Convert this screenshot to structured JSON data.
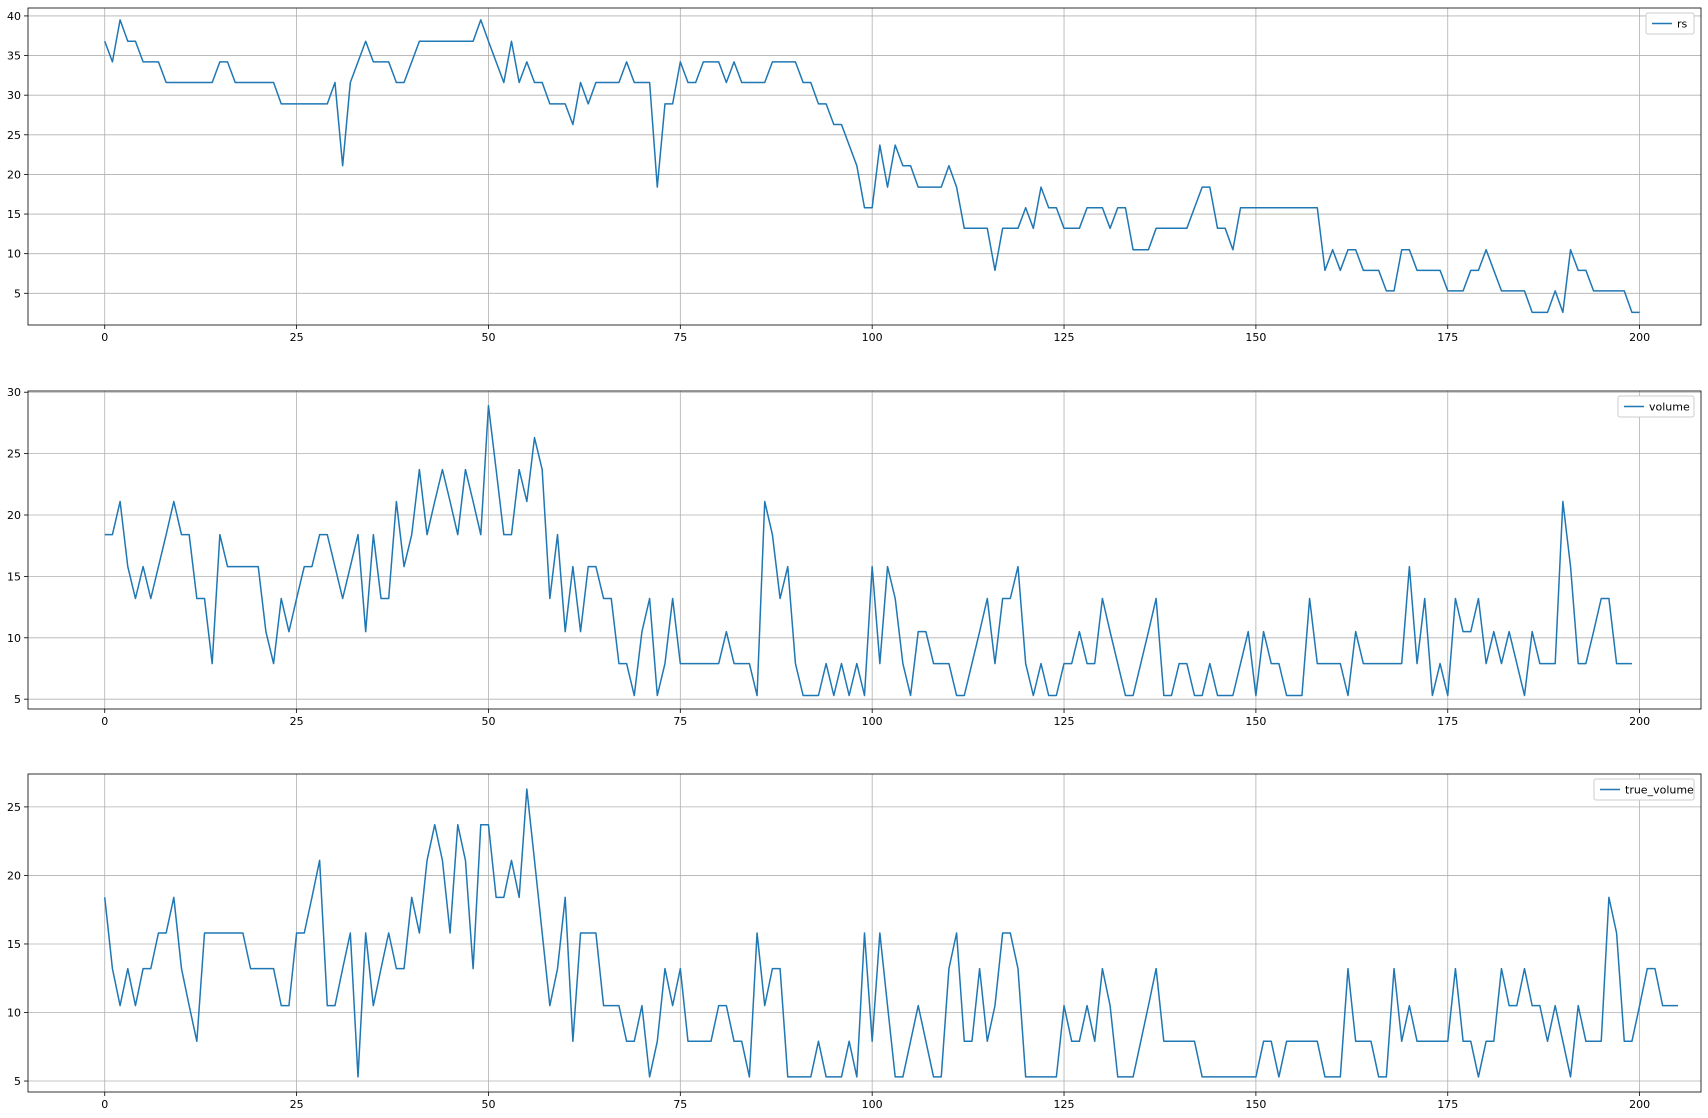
{
  "chart_data": [
    {
      "type": "line",
      "series": [
        {
          "name": "rs",
          "color": "#1f77b4",
          "values": [
            36.8,
            34.2,
            39.5,
            36.8,
            36.8,
            34.2,
            34.2,
            34.2,
            31.6,
            31.6,
            31.6,
            31.6,
            31.6,
            31.6,
            31.6,
            34.2,
            34.2,
            31.6,
            31.6,
            31.6,
            31.6,
            31.6,
            31.6,
            28.9,
            28.9,
            28.9,
            28.9,
            28.9,
            28.9,
            28.9,
            31.6,
            21.1,
            31.6,
            34.2,
            36.8,
            34.2,
            34.2,
            34.2,
            31.6,
            31.6,
            34.2,
            36.8,
            36.8,
            36.8,
            36.8,
            36.8,
            36.8,
            36.8,
            36.8,
            39.5,
            36.8,
            34.2,
            31.6,
            36.8,
            31.6,
            34.2,
            31.6,
            31.6,
            28.9,
            28.9,
            28.9,
            26.3,
            31.6,
            28.9,
            31.6,
            31.6,
            31.6,
            31.6,
            34.2,
            31.6,
            31.6,
            31.6,
            18.4,
            28.9,
            28.9,
            34.2,
            31.6,
            31.6,
            34.2,
            34.2,
            34.2,
            31.6,
            34.2,
            31.6,
            31.6,
            31.6,
            31.6,
            34.2,
            34.2,
            34.2,
            34.2,
            31.6,
            31.6,
            28.9,
            28.9,
            26.3,
            26.3,
            23.7,
            21.1,
            15.8,
            15.8,
            23.7,
            18.4,
            23.7,
            21.1,
            21.1,
            18.4,
            18.4,
            18.4,
            18.4,
            21.1,
            18.4,
            13.2,
            13.2,
            13.2,
            13.2,
            7.9,
            13.2,
            13.2,
            13.2,
            15.8,
            13.2,
            18.4,
            15.8,
            15.8,
            13.2,
            13.2,
            13.2,
            15.8,
            15.8,
            15.8,
            13.2,
            15.8,
            15.8,
            10.5,
            10.5,
            10.5,
            13.2,
            13.2,
            13.2,
            13.2,
            13.2,
            15.8,
            18.4,
            18.4,
            13.2,
            13.2,
            10.5,
            15.8,
            15.8,
            15.8,
            15.8,
            15.8,
            15.8,
            15.8,
            15.8,
            15.8,
            15.8,
            15.8,
            7.9,
            10.5,
            7.9,
            10.5,
            10.5,
            7.9,
            7.9,
            7.9,
            5.3,
            5.3,
            10.5,
            10.5,
            7.9,
            7.9,
            7.9,
            7.9,
            5.3,
            5.3,
            5.3,
            7.9,
            7.9,
            10.5,
            7.9,
            5.3,
            5.3,
            5.3,
            5.3,
            2.6,
            2.6,
            2.6,
            5.3,
            2.6,
            10.5,
            7.9,
            7.9,
            5.3,
            5.3,
            5.3,
            5.3,
            5.3,
            2.6,
            2.6
          ]
        }
      ],
      "xlim": [
        -10,
        208
      ],
      "ylim": [
        1.0,
        41.0
      ],
      "xticks": [
        0,
        25,
        50,
        75,
        100,
        125,
        150,
        175,
        200
      ],
      "yticks": [
        5,
        10,
        15,
        20,
        25,
        30,
        35,
        40
      ],
      "grid": true,
      "legend": "top-right"
    },
    {
      "type": "line",
      "series": [
        {
          "name": "volume",
          "color": "#1f77b4",
          "values": [
            18.4,
            18.4,
            21.1,
            15.8,
            13.2,
            15.8,
            13.2,
            15.8,
            18.4,
            21.1,
            18.4,
            18.4,
            13.2,
            13.2,
            7.9,
            18.4,
            15.8,
            15.8,
            15.8,
            15.8,
            15.8,
            10.5,
            7.9,
            13.2,
            10.5,
            13.2,
            15.8,
            15.8,
            18.4,
            18.4,
            15.8,
            13.2,
            15.8,
            18.4,
            10.5,
            18.4,
            13.2,
            13.2,
            21.1,
            15.8,
            18.4,
            23.7,
            18.4,
            21.1,
            23.7,
            21.1,
            18.4,
            23.7,
            21.1,
            18.4,
            28.9,
            23.7,
            18.4,
            18.4,
            23.7,
            21.1,
            26.3,
            23.7,
            13.2,
            18.4,
            10.5,
            15.8,
            10.5,
            15.8,
            15.8,
            13.2,
            13.2,
            7.9,
            7.9,
            5.3,
            10.5,
            13.2,
            5.3,
            7.9,
            13.2,
            7.9,
            7.9,
            7.9,
            7.9,
            7.9,
            7.9,
            10.5,
            7.9,
            7.9,
            7.9,
            5.3,
            21.1,
            18.4,
            13.2,
            15.8,
            7.9,
            5.3,
            5.3,
            5.3,
            7.9,
            5.3,
            7.9,
            5.3,
            7.9,
            5.3,
            15.8,
            7.9,
            15.8,
            13.2,
            7.9,
            5.3,
            10.5,
            10.5,
            7.9,
            7.9,
            7.9,
            5.3,
            5.3,
            7.9,
            10.5,
            13.2,
            7.9,
            13.2,
            13.2,
            15.8,
            7.9,
            5.3,
            7.9,
            5.3,
            5.3,
            7.9,
            7.9,
            10.5,
            7.9,
            7.9,
            13.2,
            10.5,
            7.9,
            5.3,
            5.3,
            7.9,
            10.5,
            13.2,
            5.3,
            5.3,
            7.9,
            7.9,
            5.3,
            5.3,
            7.9,
            5.3,
            5.3,
            5.3,
            7.9,
            10.5,
            5.3,
            10.5,
            7.9,
            7.9,
            5.3,
            5.3,
            5.3,
            13.2,
            7.9,
            7.9,
            7.9,
            7.9,
            5.3,
            10.5,
            7.9,
            7.9,
            7.9,
            7.9,
            7.9,
            7.9,
            15.8,
            7.9,
            13.2,
            5.3,
            7.9,
            5.3,
            13.2,
            10.5,
            10.5,
            13.2,
            7.9,
            10.5,
            7.9,
            10.5,
            7.9,
            5.3,
            10.5,
            7.9,
            7.9,
            7.9,
            21.1,
            15.8,
            7.9,
            7.9,
            10.5,
            13.2,
            13.2,
            7.9,
            7.9,
            7.9
          ]
        }
      ],
      "xlim": [
        -10,
        208
      ],
      "ylim": [
        4.2,
        30.1
      ],
      "xticks": [
        0,
        25,
        50,
        75,
        100,
        125,
        150,
        175,
        200
      ],
      "yticks": [
        5,
        10,
        15,
        20,
        25,
        30
      ],
      "grid": true,
      "legend": "top-right"
    },
    {
      "type": "line",
      "series": [
        {
          "name": "true_volume",
          "color": "#1f77b4",
          "values": [
            18.4,
            13.2,
            10.5,
            13.2,
            10.5,
            13.2,
            13.2,
            15.8,
            15.8,
            18.4,
            13.2,
            10.5,
            7.9,
            15.8,
            15.8,
            15.8,
            15.8,
            15.8,
            15.8,
            13.2,
            13.2,
            13.2,
            13.2,
            10.5,
            10.5,
            15.8,
            15.8,
            18.4,
            21.1,
            10.5,
            10.5,
            13.2,
            15.8,
            5.3,
            15.8,
            10.5,
            13.2,
            15.8,
            13.2,
            13.2,
            18.4,
            15.8,
            21.1,
            23.7,
            21.1,
            15.8,
            23.7,
            21.1,
            13.2,
            23.7,
            23.7,
            18.4,
            18.4,
            21.1,
            18.4,
            26.3,
            21.1,
            15.8,
            10.5,
            13.2,
            18.4,
            7.9,
            15.8,
            15.8,
            15.8,
            10.5,
            10.5,
            10.5,
            7.9,
            7.9,
            10.5,
            5.3,
            7.9,
            13.2,
            10.5,
            13.2,
            7.9,
            7.9,
            7.9,
            7.9,
            10.5,
            10.5,
            7.9,
            7.9,
            5.3,
            15.8,
            10.5,
            13.2,
            13.2,
            5.3,
            5.3,
            5.3,
            5.3,
            7.9,
            5.3,
            5.3,
            5.3,
            7.9,
            5.3,
            15.8,
            7.9,
            15.8,
            10.5,
            5.3,
            5.3,
            7.9,
            10.5,
            7.9,
            5.3,
            5.3,
            13.2,
            15.8,
            7.9,
            7.9,
            13.2,
            7.9,
            10.5,
            15.8,
            15.8,
            13.2,
            5.3,
            5.3,
            5.3,
            5.3,
            5.3,
            10.5,
            7.9,
            7.9,
            10.5,
            7.9,
            13.2,
            10.5,
            5.3,
            5.3,
            5.3,
            7.9,
            10.5,
            13.2,
            7.9,
            7.9,
            7.9,
            7.9,
            7.9,
            5.3,
            5.3,
            5.3,
            5.3,
            5.3,
            5.3,
            5.3,
            5.3,
            7.9,
            7.9,
            5.3,
            7.9,
            7.9,
            7.9,
            7.9,
            7.9,
            5.3,
            5.3,
            5.3,
            13.2,
            7.9,
            7.9,
            7.9,
            5.3,
            5.3,
            13.2,
            7.9,
            10.5,
            7.9,
            7.9,
            7.9,
            7.9,
            7.9,
            13.2,
            7.9,
            7.9,
            5.3,
            7.9,
            7.9,
            13.2,
            10.5,
            10.5,
            13.2,
            10.5,
            10.5,
            7.9,
            10.5,
            7.9,
            5.3,
            10.5,
            7.9,
            7.9,
            7.9,
            18.4,
            15.8,
            7.9,
            7.9,
            10.5,
            13.2,
            13.2,
            10.5,
            10.5,
            10.5
          ]
        }
      ],
      "xlim": [
        -10,
        208
      ],
      "ylim": [
        4.2,
        27.4
      ],
      "xticks": [
        0,
        25,
        50,
        75,
        100,
        125,
        150,
        175,
        200
      ],
      "yticks": [
        5,
        10,
        15,
        20,
        25
      ],
      "grid": true,
      "legend": "top-right"
    }
  ]
}
